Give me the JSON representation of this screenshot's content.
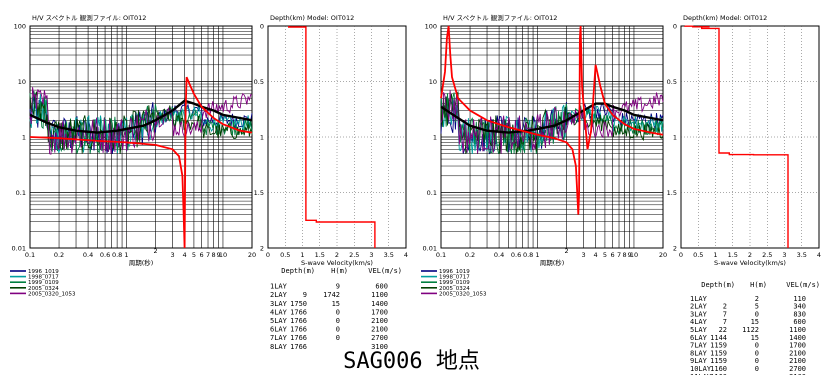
{
  "title": "SAG006 地点",
  "colors": {
    "model": "#ff0000",
    "average": "#000000",
    "series": [
      "#000080",
      "#00a0a0",
      "#008040",
      "#004000",
      "#800080"
    ],
    "grid": "#000000"
  },
  "panels": [
    {
      "hv": {
        "title": "H/V スペクトル 観測ファイル: OIT012",
        "xlabel": "周期(秒)",
        "xticks": [
          "0.1",
          "0.2",
          "0.4",
          "0.6",
          "0.8",
          "1",
          "2",
          "3",
          "4",
          "5",
          "6",
          "7",
          "8",
          "9",
          "10",
          "20"
        ],
        "yticks": [
          "100",
          "10",
          "1",
          "0.1",
          "0.01"
        ],
        "legend": [
          "1996_1019",
          "1998_0717",
          "1999_0109",
          "2005_0324",
          "2005_0320_1053"
        ]
      },
      "profile": {
        "title": "Depth(km)  Model: OIT012",
        "xlabel": "S-wave Velocity(km/s)",
        "xticks": [
          "0",
          "0.5",
          "1",
          "1.5",
          "2",
          "2.5",
          "3",
          "3.5",
          "4"
        ],
        "yticks": [
          "0",
          "0.5",
          "1",
          "1.5",
          "2"
        ]
      },
      "table": {
        "headers": [
          "Depth(m)",
          "H(m)",
          "VEL(m/s)"
        ],
        "rows": [
          [
            "1LAY",
            "",
            "9",
            "600"
          ],
          [
            "2LAY",
            "9",
            "1742",
            "1100"
          ],
          [
            "3LAY",
            "1750",
            "15",
            "1400"
          ],
          [
            "4LAY",
            "1766",
            "0",
            "1700"
          ],
          [
            "5LAY",
            "1766",
            "0",
            "2100"
          ],
          [
            "6LAY",
            "1766",
            "0",
            "2100"
          ],
          [
            "7LAY",
            "1766",
            "0",
            "2700"
          ],
          [
            "8LAY",
            "1766",
            "",
            "3100"
          ]
        ]
      }
    },
    {
      "hv": {
        "title": "H/V スペクトル 観測ファイル: OIT012",
        "xlabel": "周期(秒)",
        "xticks": [
          "0.1",
          "0.2",
          "0.4",
          "0.6",
          "0.8",
          "1",
          "2",
          "3",
          "4",
          "5",
          "6",
          "7",
          "8",
          "9",
          "10",
          "20"
        ],
        "yticks": [
          "100",
          "10",
          "1",
          "0.1",
          "0.01"
        ],
        "legend": [
          "1996_1019",
          "1998_0717",
          "1999_0109",
          "2005_0324",
          "2005_0320_1053"
        ]
      },
      "profile": {
        "title": "Depth(km)  Model: OIT012",
        "xlabel": "S-wave Velocity(km/s)",
        "xticks": [
          "0",
          "0.5",
          "1",
          "1.5",
          "2",
          "2.5",
          "3",
          "3.5",
          "4"
        ],
        "yticks": [
          "0",
          "0.5",
          "1",
          "1.5",
          "2"
        ]
      },
      "table": {
        "headers": [
          "Depth(m)",
          "H(m)",
          "VEL(m/s)"
        ],
        "rows": [
          [
            "1LAY",
            "",
            "2",
            "110"
          ],
          [
            "2LAY",
            "2",
            "5",
            "340"
          ],
          [
            "3LAY",
            "7",
            "0",
            "830"
          ],
          [
            "4LAY",
            "7",
            "15",
            "600"
          ],
          [
            "5LAY",
            "22",
            "1122",
            "1100"
          ],
          [
            "6LAY",
            "1144",
            "15",
            "1400"
          ],
          [
            "7LAY",
            "1159",
            "0",
            "1700"
          ],
          [
            "8LAY",
            "1159",
            "0",
            "2100"
          ],
          [
            "9LAY",
            "1159",
            "0",
            "2100"
          ],
          [
            "10LAY",
            "1160",
            "0",
            "2700"
          ],
          [
            "11LAY",
            "1160",
            "",
            "3100"
          ]
        ]
      }
    }
  ],
  "chart_data": [
    {
      "type": "line",
      "title": "H/V スペクトル 観測ファイル: OIT012",
      "xlabel": "周期(秒)",
      "x_scale": "log",
      "y_scale": "log",
      "xlim": [
        0.1,
        20
      ],
      "ylim": [
        0.01,
        100
      ],
      "legend": [
        "1996_1019",
        "1998_0717",
        "1999_0109",
        "2005_0324",
        "2005_0320_1053"
      ],
      "legend_position": "below",
      "model_curve": {
        "x": [
          0.1,
          0.2,
          0.5,
          1,
          2,
          3,
          3.5,
          3.8,
          3.9,
          4.0,
          4.1,
          4.2,
          4.5,
          5,
          6,
          8,
          10,
          15,
          20
        ],
        "y": [
          1.0,
          0.95,
          0.85,
          0.8,
          0.72,
          0.6,
          0.45,
          0.2,
          0.05,
          0.01,
          3.0,
          12,
          9,
          6,
          3.5,
          2.2,
          1.7,
          1.3,
          1.2
        ]
      },
      "average_curve": {
        "x": [
          0.1,
          0.15,
          0.2,
          0.3,
          0.5,
          0.8,
          1,
          1.5,
          2,
          3,
          4,
          5,
          6,
          8,
          10,
          15,
          20
        ],
        "y": [
          2.5,
          1.8,
          1.5,
          1.3,
          1.2,
          1.3,
          1.4,
          1.6,
          2.0,
          3.0,
          4.5,
          4.0,
          3.5,
          3.0,
          2.5,
          2.2,
          2.0
        ]
      }
    },
    {
      "type": "line",
      "title": "Depth(km)  Model: OIT012",
      "xlabel": "S-wave Velocity(km/s)",
      "xlim": [
        0,
        4
      ],
      "ylim": [
        2,
        0
      ],
      "profile": {
        "velocity_kms": [
          0.6,
          1.1,
          1.4,
          1.7,
          2.1,
          2.1,
          2.7,
          3.1
        ],
        "top_depth_km": [
          0,
          0.009,
          1.75,
          1.766,
          1.766,
          1.766,
          1.766,
          1.766
        ]
      }
    },
    {
      "type": "line",
      "title": "H/V スペクトル 観測ファイル: OIT012",
      "xlabel": "周期(秒)",
      "x_scale": "log",
      "y_scale": "log",
      "xlim": [
        0.1,
        20
      ],
      "ylim": [
        0.01,
        100
      ],
      "legend": [
        "1996_1019",
        "1998_0717",
        "1999_0109",
        "2005_0324",
        "2005_0320_1053"
      ],
      "legend_position": "below",
      "model_curve": {
        "x": [
          0.1,
          0.11,
          0.115,
          0.12,
          0.125,
          0.13,
          0.15,
          0.2,
          0.3,
          0.5,
          1,
          1.5,
          2,
          2.3,
          2.5,
          2.6,
          2.65,
          2.7,
          2.75,
          2.8,
          2.9,
          3.0,
          3.3,
          3.6,
          4,
          4.5,
          5,
          6,
          8,
          10,
          15,
          20
        ],
        "y": [
          5,
          15,
          60,
          100,
          30,
          12,
          5,
          3,
          2,
          1.5,
          1.1,
          0.95,
          0.8,
          0.6,
          0.3,
          0.08,
          0.04,
          0.1,
          60,
          100,
          8,
          4,
          0.6,
          1.3,
          20,
          8,
          4,
          2.5,
          1.7,
          1.4,
          1.2,
          1.1
        ]
      },
      "average_curve": {
        "x": [
          0.1,
          0.15,
          0.2,
          0.3,
          0.5,
          0.8,
          1,
          1.5,
          2,
          3,
          4,
          5,
          6,
          8,
          10,
          15,
          20
        ],
        "y": [
          3.5,
          2.2,
          1.6,
          1.3,
          1.2,
          1.3,
          1.4,
          1.6,
          2.0,
          3.0,
          4.0,
          4.0,
          3.5,
          3.0,
          2.5,
          2.2,
          2.0
        ]
      }
    },
    {
      "type": "line",
      "title": "Depth(km)  Model: OIT012",
      "xlabel": "S-wave Velocity(km/s)",
      "xlim": [
        0,
        4
      ],
      "ylim": [
        2,
        0
      ],
      "profile": {
        "velocity_kms": [
          0.11,
          0.34,
          0.83,
          0.6,
          1.1,
          1.4,
          1.7,
          2.1,
          2.1,
          2.7,
          3.1
        ],
        "top_depth_km": [
          0,
          0.002,
          0.007,
          0.007,
          0.022,
          1.144,
          1.159,
          1.159,
          1.159,
          1.16,
          1.16
        ]
      }
    }
  ]
}
